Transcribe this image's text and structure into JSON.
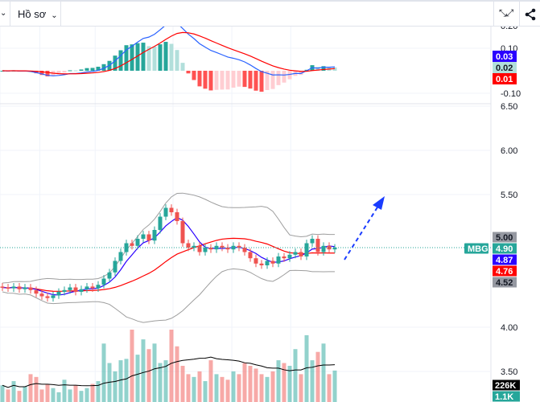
{
  "toolbar": {
    "profile_label": "Hồ sơ",
    "icons": [
      "chevron-down-icon",
      "fullscreen-icon",
      "share-icon"
    ]
  },
  "symbol": "MBG",
  "colors": {
    "up": "#26a69a",
    "down": "#ef5350",
    "macd": "#2962ff",
    "signal": "#ff0000",
    "band": "#9e9e9e"
  },
  "macd_axis": {
    "ticks": [
      "0.20",
      "0.10",
      "-0.10"
    ],
    "labels": [
      {
        "text": "0.03",
        "color": "#2a00ff"
      },
      {
        "text": "0.02",
        "color": "#b2dfdb"
      },
      {
        "text": "0.01",
        "color": "#ff0000"
      }
    ]
  },
  "price_axis": {
    "ticks": [
      "6.50",
      "6.00",
      "5.50",
      "4.00",
      "3.50"
    ],
    "labels": [
      {
        "text": "5.00",
        "price": 5.0,
        "color": "#9598a1"
      },
      {
        "text": "4.90",
        "price": 4.9,
        "color": "#26a69a"
      },
      {
        "text": "4.87",
        "price": 4.87,
        "color": "#2a00ff"
      },
      {
        "text": "4.76",
        "price": 4.76,
        "color": "#ff0000"
      },
      {
        "text": "4.52",
        "price": 4.52,
        "color": "#9598a1"
      }
    ]
  },
  "volume_labels": [
    {
      "text": "226K",
      "color": "#000000"
    },
    {
      "text": "1.1K",
      "color": "#26a69a"
    }
  ],
  "chart_data": {
    "type": "candlestick",
    "ylim": [
      3.4,
      6.55
    ],
    "last_price": 4.9,
    "close": [
      4.45,
      4.44,
      4.46,
      4.43,
      4.45,
      4.42,
      4.38,
      4.35,
      4.33,
      4.36,
      4.4,
      4.42,
      4.45,
      4.4,
      4.43,
      4.46,
      4.44,
      4.48,
      4.55,
      4.62,
      4.75,
      4.85,
      4.95,
      4.92,
      5.0,
      5.05,
      4.98,
      5.1,
      5.25,
      5.35,
      5.3,
      5.2,
      4.95,
      4.9,
      4.92,
      4.85,
      4.9,
      4.88,
      4.92,
      4.9,
      4.88,
      4.92,
      4.9,
      4.85,
      4.78,
      4.72,
      4.7,
      4.75,
      4.72,
      4.8,
      4.78,
      4.82,
      4.85,
      4.8,
      4.95,
      5.0,
      4.85,
      4.92,
      4.88,
      4.9
    ],
    "volume_k": [
      120,
      90,
      150,
      80,
      110,
      200,
      180,
      90,
      130,
      100,
      70,
      160,
      90,
      120,
      80,
      100,
      130,
      150,
      420,
      280,
      220,
      300,
      310,
      520,
      340,
      450,
      380,
      420,
      280,
      300,
      520,
      400,
      260,
      200,
      180,
      220,
      150,
      300,
      200,
      180,
      160,
      220,
      200,
      280,
      260,
      240,
      200,
      180,
      220,
      300,
      280,
      260,
      380,
      200,
      480,
      300,
      360,
      420,
      200,
      226
    ]
  }
}
